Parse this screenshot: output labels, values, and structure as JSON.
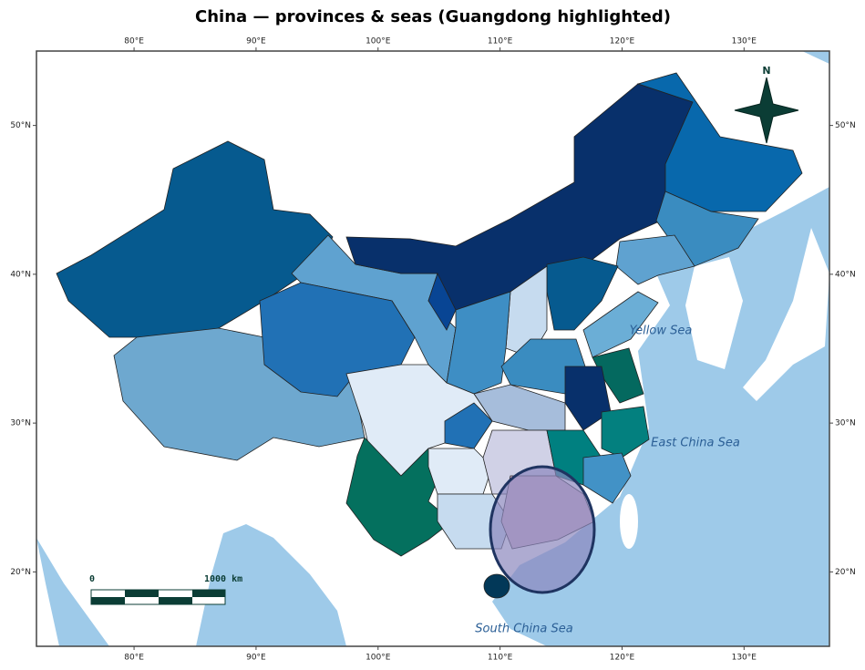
{
  "title": "China — provinces & seas (Guangdong highlighted)",
  "xlim": [
    72,
    137
  ],
  "ylim": [
    15,
    55
  ],
  "xticks": [
    {
      "value": 80,
      "label": "80°E"
    },
    {
      "value": 90,
      "label": "90°E"
    },
    {
      "value": 100,
      "label": "100°E"
    },
    {
      "value": 110,
      "label": "110°E"
    },
    {
      "value": 120,
      "label": "120°E"
    },
    {
      "value": 130,
      "label": "130°E"
    }
  ],
  "yticks": [
    {
      "value": 20,
      "label": "20°N"
    },
    {
      "value": 30,
      "label": "30°N"
    },
    {
      "value": 40,
      "label": "40°N"
    },
    {
      "value": 50,
      "label": "50°N"
    }
  ],
  "seas": [
    "Yellow Sea",
    "East China Sea",
    "South China Sea"
  ],
  "scalebar": {
    "start": "0",
    "end": "1000 km"
  },
  "north": "N"
}
